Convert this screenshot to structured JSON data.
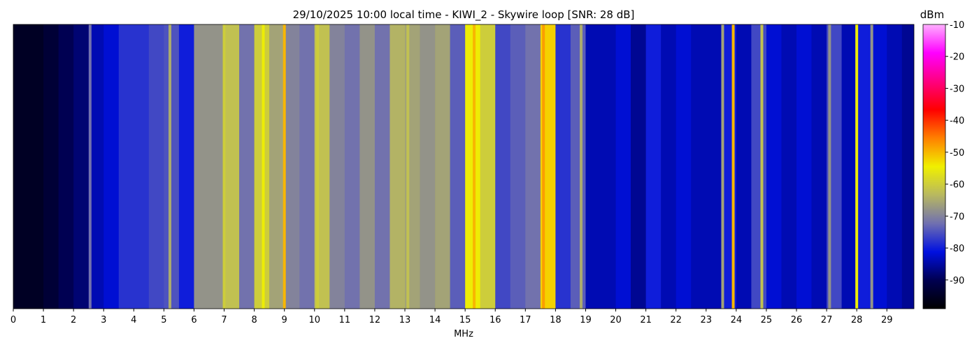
{
  "chart_data": {
    "type": "waterfall",
    "title": "29/10/2025 10:00 local time - KIWI_2 - Skywire loop [SNR: 28 dB]",
    "x_label": "MHz",
    "colorbar_label": "dBm",
    "xlim": [
      0,
      29.9
    ],
    "xticks": [
      0,
      1,
      2,
      3,
      4,
      5,
      6,
      7,
      8,
      9,
      10,
      11,
      12,
      13,
      14,
      15,
      16,
      17,
      18,
      19,
      20,
      21,
      22,
      23,
      24,
      25,
      26,
      27,
      28,
      29
    ],
    "clim": [
      -99,
      -10
    ],
    "cticks": [
      -10,
      -20,
      -30,
      -40,
      -50,
      -60,
      -70,
      -80,
      -90
    ],
    "colormap": [
      "#000000",
      "#000050",
      "#0010e0",
      "#7070b0",
      "#b8b860",
      "#f0f000",
      "#ff8000",
      "#ff0000",
      "#ff0080",
      "#ff00ff",
      "#ffb0ff"
    ],
    "bin_width": 0.5,
    "x": [
      0,
      0.5,
      1,
      1.5,
      2,
      2.5,
      3,
      3.5,
      4,
      4.5,
      5,
      5.5,
      6,
      6.5,
      7,
      7.5,
      8,
      8.5,
      9,
      9.5,
      10,
      10.5,
      11,
      11.5,
      12,
      12.5,
      13,
      13.5,
      14,
      14.5,
      15,
      15.5,
      16,
      16.5,
      17,
      17.5,
      18,
      18.5,
      19,
      19.5,
      20,
      20.5,
      21,
      21.5,
      22,
      22.5,
      23,
      23.5,
      24,
      24.5,
      25,
      25.5,
      26,
      26.5,
      27,
      27.5,
      28,
      28.5,
      29,
      29.5
    ],
    "values": [
      -95,
      -95,
      -93,
      -90,
      -88,
      -84,
      -82,
      -78,
      -78,
      -76,
      -75,
      -80,
      -68,
      -68,
      -62,
      -72,
      -60,
      -66,
      -70,
      -72,
      -62,
      -70,
      -72,
      -68,
      -72,
      -64,
      -66,
      -68,
      -66,
      -74,
      -55,
      -60,
      -76,
      -74,
      -72,
      -52,
      -78,
      -74,
      -84,
      -84,
      -82,
      -86,
      -80,
      -84,
      -82,
      -84,
      -84,
      -80,
      -84,
      -76,
      -82,
      -84,
      -82,
      -84,
      -76,
      -84,
      -80,
      -82,
      -84,
      -86
    ],
    "signals": {
      "x": [
        2.55,
        5.2,
        7.0,
        8.3,
        9.0,
        10.1,
        13.1,
        15.3,
        17.6,
        18.85,
        23.55,
        23.9,
        24.85,
        27.1,
        28.0,
        28.5
      ],
      "values": [
        -72,
        -65,
        -60,
        -55,
        -50,
        -60,
        -62,
        -50,
        -48,
        -65,
        -66,
        -50,
        -62,
        -68,
        -55,
        -68
      ]
    }
  }
}
